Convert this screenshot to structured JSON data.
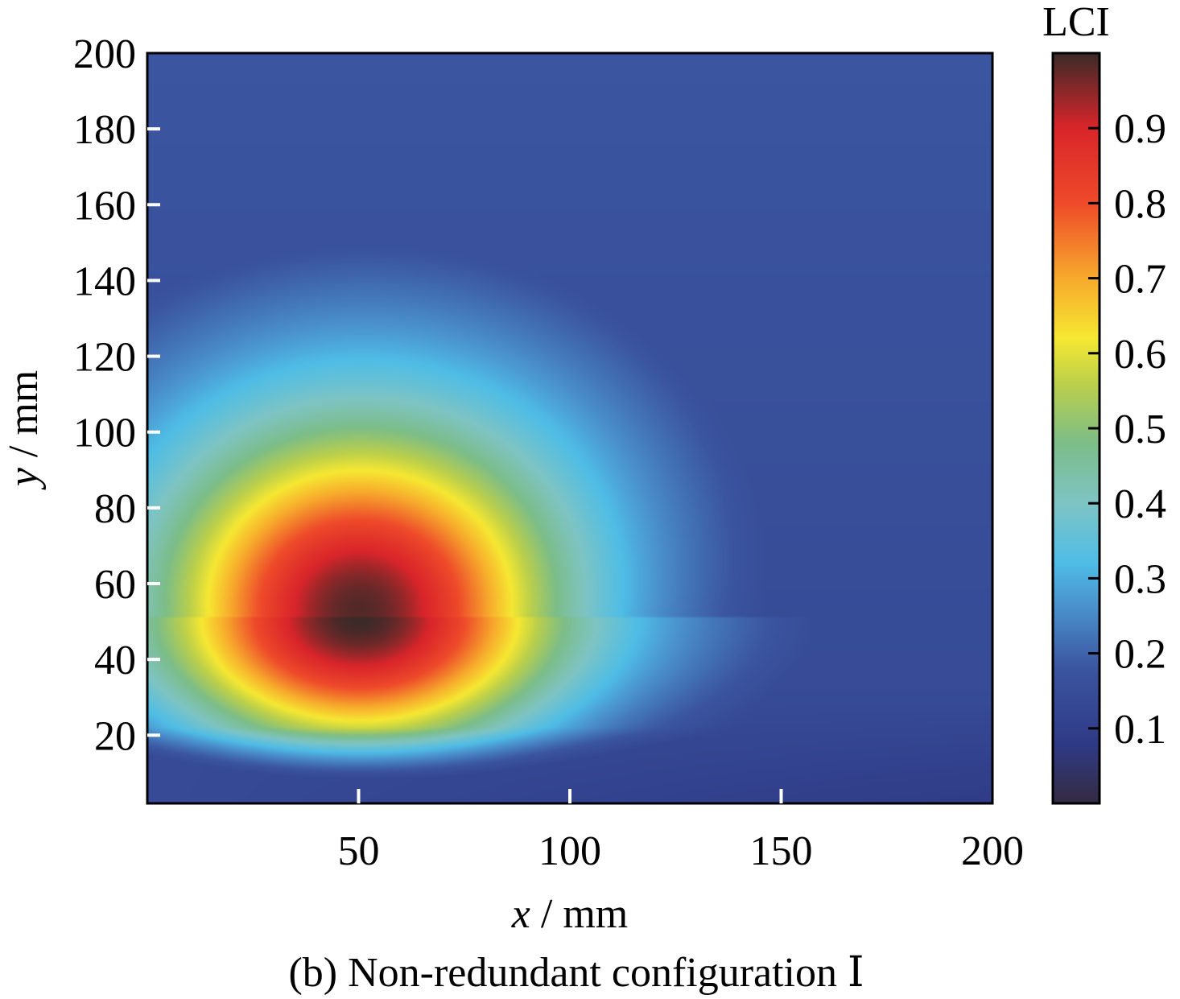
{
  "chart_data": {
    "type": "heatmap",
    "title": "",
    "caption": "(b) Non-redundant configuration Ⅰ",
    "xlabel": {
      "var": "x",
      "unit": " / mm"
    },
    "ylabel": {
      "var": "y",
      "unit": " / mm"
    },
    "xlim": [
      0,
      200
    ],
    "ylim": [
      2,
      200
    ],
    "x_ticks": [
      "50",
      "100",
      "150",
      "200"
    ],
    "x_tick_values": [
      50,
      100,
      150,
      200
    ],
    "y_ticks": [
      "20",
      "40",
      "60",
      "80",
      "100",
      "120",
      "140",
      "160",
      "180",
      "200"
    ],
    "y_tick_values": [
      20,
      40,
      60,
      80,
      100,
      120,
      140,
      160,
      180,
      200
    ],
    "colorbar": {
      "label": "LCI",
      "min": 0,
      "max": 1,
      "ticks": [
        "0.1",
        "0.2",
        "0.3",
        "0.4",
        "0.5",
        "0.6",
        "0.7",
        "0.8",
        "0.9"
      ],
      "tick_values": [
        0.1,
        0.2,
        0.3,
        0.4,
        0.5,
        0.6,
        0.7,
        0.8,
        0.9
      ]
    },
    "colormap": [
      {
        "v": 0.0,
        "color": "#352a43"
      },
      {
        "v": 0.08,
        "color": "#2f3a86"
      },
      {
        "v": 0.18,
        "color": "#3b55a0"
      },
      {
        "v": 0.26,
        "color": "#4a8fcc"
      },
      {
        "v": 0.32,
        "color": "#4fbde6"
      },
      {
        "v": 0.4,
        "color": "#7ec4c4"
      },
      {
        "v": 0.48,
        "color": "#7cbd88"
      },
      {
        "v": 0.56,
        "color": "#bcd04a"
      },
      {
        "v": 0.62,
        "color": "#f6e832"
      },
      {
        "v": 0.7,
        "color": "#f7a92c"
      },
      {
        "v": 0.8,
        "color": "#ee4a2a"
      },
      {
        "v": 0.9,
        "color": "#d9252a"
      },
      {
        "v": 1.0,
        "color": "#3a2a28"
      }
    ],
    "peak": {
      "x": 50,
      "y": 51,
      "value": 1.0
    },
    "field_description_values": {
      "inner_radius_x": 25,
      "inner_radius_y": 22,
      "outer_radius": 145,
      "outer_center_x": 52,
      "outer_center_y": 70
    },
    "grid": false,
    "colorbar_placement": "right"
  }
}
